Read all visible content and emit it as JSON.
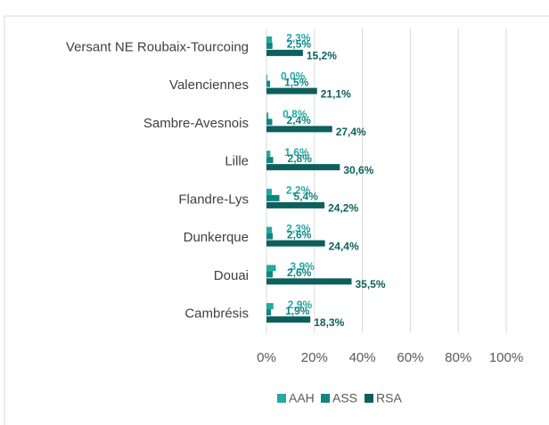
{
  "chart_data": {
    "type": "hbar",
    "categories": [
      "Versant NE Roubaix-Tourcoing",
      "Valenciennes",
      "Sambre-Avesnois",
      "Lille",
      "Flandre-Lys",
      "Dunkerque",
      "Douai",
      "Cambrésis"
    ],
    "series": [
      {
        "name": "AAH",
        "color": "#23a8a3",
        "values": [
          2.3,
          0.0,
          0.8,
          1.6,
          2.2,
          2.3,
          3.9,
          2.9
        ],
        "value_labels": [
          "2,3%",
          "0,0%",
          "0,8%",
          "1,6%",
          "2,2%",
          "2,3%",
          "3,9%",
          "2,9%"
        ]
      },
      {
        "name": "ASS",
        "color": "#138480",
        "values": [
          2.5,
          1.5,
          2.4,
          2.8,
          5.4,
          2.6,
          2.6,
          1.9
        ],
        "value_labels": [
          "2,5%",
          "1,5%",
          "2,4%",
          "2,8%",
          "5,4%",
          "2,6%",
          "2,6%",
          "1,9%"
        ]
      },
      {
        "name": "RSA",
        "color": "#0c605d",
        "values": [
          15.2,
          21.1,
          27.4,
          30.6,
          24.2,
          24.4,
          35.5,
          18.3
        ],
        "value_labels": [
          "15,2%",
          "21,1%",
          "27,4%",
          "30,6%",
          "24,2%",
          "24,4%",
          "35,5%",
          "18,3%"
        ]
      }
    ],
    "xlim": [
      0,
      100
    ],
    "xticks": [
      {
        "value": 0,
        "label": "0%"
      },
      {
        "value": 20,
        "label": "20%"
      },
      {
        "value": 40,
        "label": "40%"
      },
      {
        "value": 60,
        "label": "60%"
      },
      {
        "value": 80,
        "label": "80%"
      },
      {
        "value": 100,
        "label": "100%"
      }
    ],
    "grid": true,
    "legend": "bottom"
  }
}
